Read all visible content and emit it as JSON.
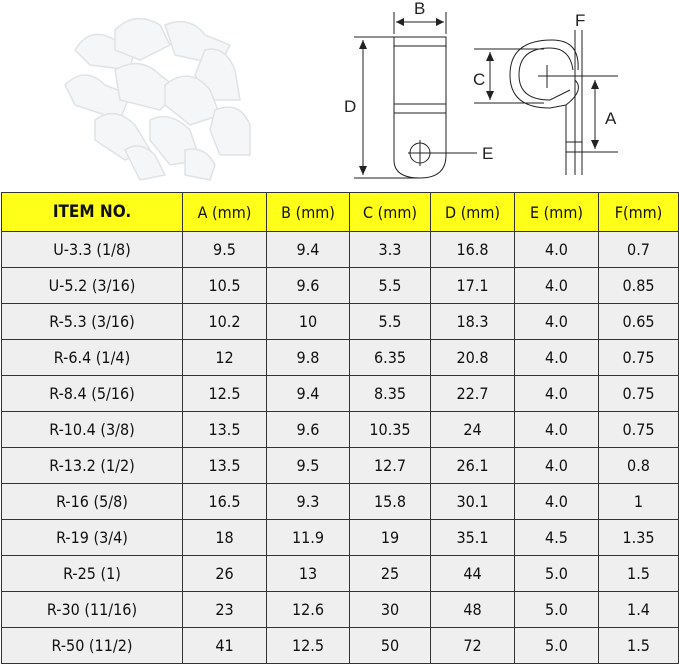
{
  "diagram": {
    "labels": [
      "B",
      "D",
      "E",
      "F",
      "C",
      "A"
    ]
  },
  "table": {
    "headers": [
      "ITEM NO.",
      "A (mm)",
      "B (mm)",
      "C (mm)",
      "D (mm)",
      "E (mm)",
      "F(mm)"
    ],
    "rows": [
      [
        "U-3.3 (1/8)",
        "9.5",
        "9.4",
        "3.3",
        "16.8",
        "4.0",
        "0.7"
      ],
      [
        "U-5.2 (3/16)",
        "10.5",
        "9.6",
        "5.5",
        "17.1",
        "4.0",
        "0.85"
      ],
      [
        "R-5.3 (3/16)",
        "10.2",
        "10",
        "5.5",
        "18.3",
        "4.0",
        "0.65"
      ],
      [
        "R-6.4 (1/4)",
        "12",
        "9.8",
        "6.35",
        "20.8",
        "4.0",
        "0.75"
      ],
      [
        "R-8.4 (5/16)",
        "12.5",
        "9.4",
        "8.35",
        "22.7",
        "4.0",
        "0.75"
      ],
      [
        "R-10.4 (3/8)",
        "13.5",
        "9.6",
        "10.35",
        "24",
        "4.0",
        "0.75"
      ],
      [
        "R-13.2 (1/2)",
        "13.5",
        "9.5",
        "12.7",
        "26.1",
        "4.0",
        "0.8"
      ],
      [
        "R-16 (5/8)",
        "16.5",
        "9.3",
        "15.8",
        "30.1",
        "4.0",
        "1"
      ],
      [
        "R-19 (3/4)",
        "18",
        "11.9",
        "19",
        "35.1",
        "4.5",
        "1.35"
      ],
      [
        "R-25 (1)",
        "26",
        "13",
        "25",
        "44",
        "5.0",
        "1.5"
      ],
      [
        "R-30 (11/16)",
        "23",
        "12.6",
        "30",
        "48",
        "5.0",
        "1.4"
      ],
      [
        "R-50 (11/2)",
        "41",
        "12.5",
        "50",
        "72",
        "5.0",
        "1.5"
      ]
    ]
  },
  "colors": {
    "header_bg": "#ffff1a",
    "row_bg": "#efefef",
    "border": "#333333"
  }
}
